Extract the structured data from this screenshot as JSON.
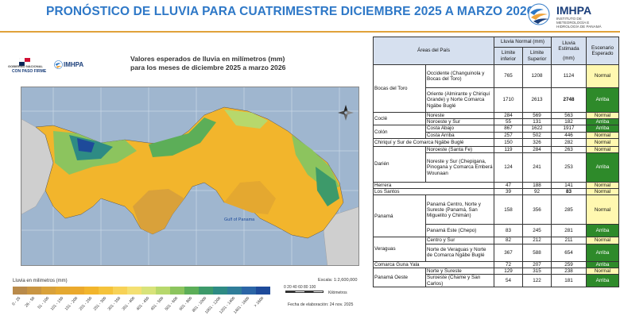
{
  "header": {
    "title": "PRONÓSTICO DE LLUVIA PARA CUATRIMESTRE  DICIEMBRE 2025 A MARZO 2026",
    "logo_brand": "IMHPA",
    "logo_sub": "INSTITUTO DE METEOROLOGÍA E HIDROLOGÍA DE PANAMÁ"
  },
  "map": {
    "gov_logo_top": "GOBIERNO NACIONAL",
    "gov_logo_bottom": "CON PASO FIRME",
    "imhpa_small": "IMHPA",
    "title_line1": "Valores esperados de lluvia en milímetros (mm)",
    "title_line2": "para los meses de diciembre 2025 a marzo 2026",
    "gulf_label": "Gulf of Panama",
    "scale": "Escala: 1:2,600,000",
    "scale_numbers": "0   20  40  60  80  100",
    "scale_unit": "Kilómetros",
    "elaboration": "Fecha de elaboración: 24 nov. 2025"
  },
  "legend": {
    "title": "Lluvia en milimetros (mm)",
    "classes": [
      {
        "label": "0 - 25",
        "color": "#b98a4a"
      },
      {
        "label": "26 - 50",
        "color": "#c99542"
      },
      {
        "label": "51 - 100",
        "color": "#d9a13a"
      },
      {
        "label": "101 - 150",
        "color": "#e4a830"
      },
      {
        "label": "151 - 200",
        "color": "#eba92c"
      },
      {
        "label": "201 - 250",
        "color": "#f2b52c"
      },
      {
        "label": "251 - 300",
        "color": "#f5c33b"
      },
      {
        "label": "301 - 350",
        "color": "#f7d257"
      },
      {
        "label": "351 - 400",
        "color": "#f4e072"
      },
      {
        "label": "401 - 450",
        "color": "#d8e37a"
      },
      {
        "label": "451 - 500",
        "color": "#b7d86c"
      },
      {
        "label": "501 - 600",
        "color": "#8cc45e"
      },
      {
        "label": "601 - 800",
        "color": "#5cae58"
      },
      {
        "label": "801 - 1000",
        "color": "#3d9a6a"
      },
      {
        "label": "1001 - 1200",
        "color": "#2e8b84"
      },
      {
        "label": "1201 - 1400",
        "color": "#2f7d99"
      },
      {
        "label": "1401 - 1600",
        "color": "#2b65a6"
      },
      {
        "label": "> 1600",
        "color": "#1e4a9a"
      }
    ]
  },
  "table": {
    "headers": {
      "areas": "Áreas del País",
      "lluvia_normal": "Lluvia Normal (mm)",
      "limite_inferior": "Límite inferior",
      "limite_superior": "Límite Superior",
      "lluvia_estimada": "Lluvia Estimada",
      "lluvia_estimada_unit": "(mm)",
      "escenario": "Escenario Esperado"
    },
    "rows": [
      {
        "province": "Bocas del Toro",
        "area": "Occidente (Changuinola y Bocas del Toro)",
        "inf": "765",
        "sup": "1208",
        "est": "1124",
        "esc": "Normal"
      },
      {
        "province": "",
        "area": "Oriente (Almirante y Chiriquí Grande) y Norte Comarca Ngäbe Buglé",
        "inf": "1710",
        "sup": "2613",
        "est": "2748",
        "esc": "Arriba"
      },
      {
        "province": "Coclé",
        "area": "Noreste",
        "inf": "284",
        "sup": "569",
        "est": "563",
        "esc": "Normal"
      },
      {
        "province": "",
        "area": "Noroeste y Sur",
        "inf": "55",
        "sup": "131",
        "est": "182",
        "esc": "Arriba"
      },
      {
        "province": "Colón",
        "area": "Costa Abajo",
        "inf": "867",
        "sup": "1622",
        "est": "1917",
        "esc": "Arriba"
      },
      {
        "province": "",
        "area": "Costa Arriba",
        "inf": "257",
        "sup": "502",
        "est": "446",
        "esc": "Normal"
      },
      {
        "province": "Chiriquí y Sur de Comarca Ngäbe Buglé",
        "area": "",
        "inf": "150",
        "sup": "326",
        "est": "282",
        "esc": "Normal"
      },
      {
        "province": "Darién",
        "area": "Noroeste (Santa Fe)",
        "inf": "119",
        "sup": "284",
        "est": "263",
        "esc": "Normal"
      },
      {
        "province": "",
        "area": "Noreste y Sur (Chepigana, Pinogana y Comarca Emberá Wounaan",
        "inf": "124",
        "sup": "241",
        "est": "253",
        "esc": "Arriba"
      },
      {
        "province": "Herrera",
        "area": "",
        "inf": "47",
        "sup": "188",
        "est": "141",
        "esc": "Normal"
      },
      {
        "province": "Los Santos",
        "area": "",
        "inf": "39",
        "sup": "92",
        "est": "83",
        "esc": "Normal"
      },
      {
        "province": "Panamá",
        "area": "Panamá Centro, Norte y Sureste (Panamá, San Miguelito y Chimán)",
        "inf": "158",
        "sup": "356",
        "est": "285",
        "esc": "Normal"
      },
      {
        "province": "",
        "area": "Panamá Este (Chepo)",
        "inf": "83",
        "sup": "245",
        "est": "281",
        "esc": "Arriba"
      },
      {
        "province": "Veraguas",
        "area": "Centro y Sur",
        "inf": "82",
        "sup": "212",
        "est": "211",
        "esc": "Normal"
      },
      {
        "province": "",
        "area": "Norte de Veraguas y Norte de Comarca Ngäbe Buglé",
        "inf": "367",
        "sup": "588",
        "est": "654",
        "esc": "Arriba"
      },
      {
        "province": "Comarca Guna Yala",
        "area": "",
        "inf": "72",
        "sup": "207",
        "est": "259",
        "esc": "Arriba"
      },
      {
        "province": "Panamá Oeste",
        "area": "Norte y Sureste",
        "inf": "129",
        "sup": "315",
        "est": "238",
        "esc": "Normal"
      },
      {
        "province": "",
        "area": "Suroeste (Chame y San Carlos)",
        "inf": "54",
        "sup": "122",
        "est": "181",
        "esc": "Arriba"
      }
    ]
  }
}
